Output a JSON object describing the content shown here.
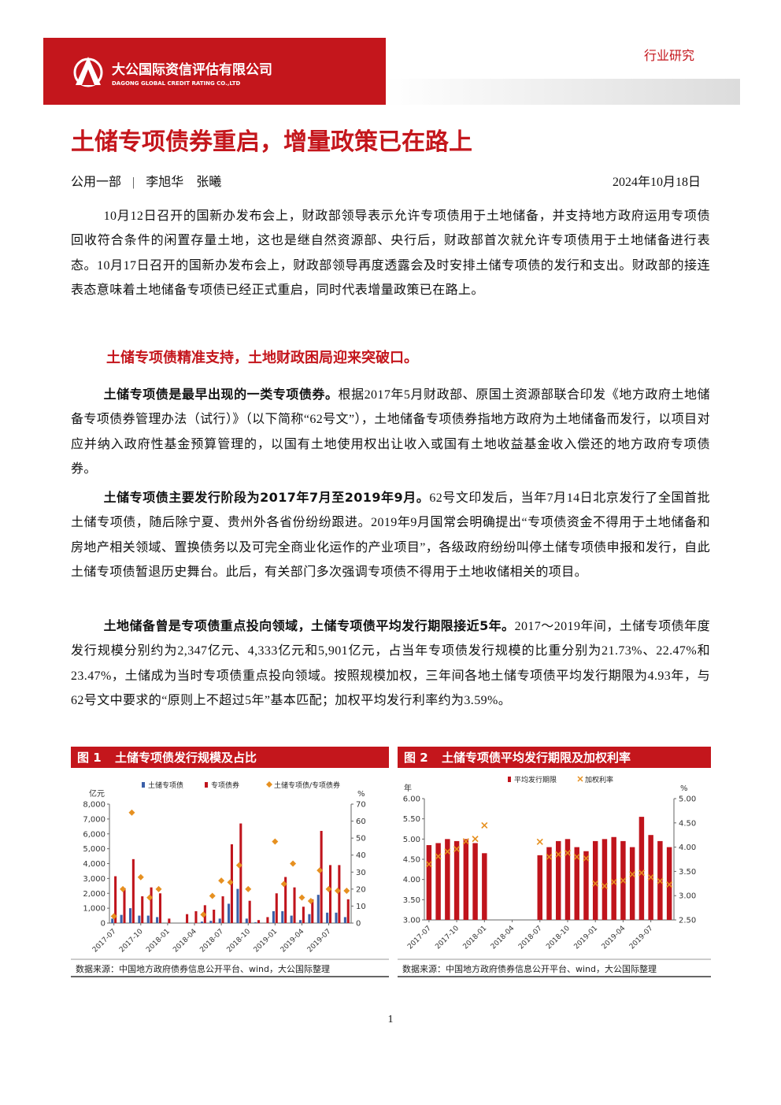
{
  "header": {
    "company_cn": "大公国际资信评估有限公司",
    "company_en": "DAGONG GLOBAL CREDIT RATING CO.,LTD",
    "category": "行业研究"
  },
  "title": "土储专项债券重启，增量政策已在路上",
  "byline": {
    "department": "公用一部",
    "authors": "李旭华　张曦",
    "date": "2024年10月18日"
  },
  "intro": "10月12日召开的国新办发布会上，财政部领导表示允许专项债用于土地储备，并支持地方政府运用专项债回收符合条件的闲置存量土地，这也是继自然资源部、央行后，财政部首次就允许专项债用于土地储备进行表态。10月17日召开的国新办发布会上，财政部领导再度透露会及时安排土储专项债的发行和支出。财政部的接连表态意味着土地储备专项债已经正式重启，同时代表增量政策已在路上。",
  "section_heading": "土储专项债精准支持，土地财政困局迎来突破口。",
  "paragraphs": [
    {
      "lead": "土储专项债是最早出现的一类专项债券。",
      "text": "根据2017年5月财政部、原国土资源部联合印发《地方政府土地储备专项债券管理办法（试行）》（以下简称“62号文”），土地储备专项债券指地方政府为土地储备而发行，以项目对应并纳入政府性基金预算管理的，以国有土地使用权出让收入或国有土地收益基金收入偿还的地方政府专项债券。"
    },
    {
      "lead": "土储专项债主要发行阶段为2017年7月至2019年9月。",
      "text": "62号文印发后，当年7月14日北京发行了全国首批土储专项债，随后除宁夏、贵州外各省份纷纷跟进。2019年9月国常会明确提出“专项债资金不得用于土地储备和房地产相关领域、置换债务以及可完全商业化运作的产业项目”，各级政府纷纷叫停土储专项债申报和发行，自此土储专项债暂退历史舞台。此后，有关部门多次强调专项债不得用于土地收储相关的项目。"
    },
    {
      "lead": "土地储备曾是专项债重点投向领域，土储专项债平均发行期限接近5年。",
      "text": "2017～2019年间，土储专项债年度发行规模分别约为2,347亿元、4,333亿元和5,901亿元，占当年专项债发行规模的比重分别为21.73%、22.47%和23.47%，土储成为当时专项债重点投向领域。按照规模加权，三年间各地土储专项债平均发行期限为4.93年，与62号文中要求的“原则上不超过5年”基本匹配；加权平均发行利率约为3.59%。"
    }
  ],
  "page_number": 1,
  "chart_data": [
    {
      "type": "bar",
      "label": "图 1",
      "title": "土储专项债发行规模及占比",
      "source": "数据来源：中国地方政府债券信息公开平台、wind，大公国际整理",
      "y_label": "亿元",
      "y2_label": "%",
      "categories": [
        "2017-07",
        null,
        null,
        "2017-10",
        null,
        null,
        "2018-01",
        null,
        null,
        "2018-04",
        null,
        null,
        "2018-07",
        null,
        null,
        "2018-10",
        null,
        null,
        "2019-01",
        null,
        null,
        "2019-04",
        null,
        null,
        "2019-07",
        null,
        null
      ],
      "series": [
        {
          "name": "土储专项债",
          "color": "#3a5fa8",
          "type": "bar",
          "values": [
            300,
            550,
            1000,
            500,
            500,
            400,
            0,
            0,
            0,
            0,
            100,
            150,
            300,
            1300,
            2300,
            300,
            50,
            0,
            800,
            800,
            500,
            200,
            600,
            1900,
            700,
            700,
            400
          ]
        },
        {
          "name": "专项债券",
          "color": "#c0141c",
          "type": "bar",
          "values": [
            3150,
            2350,
            4300,
            1800,
            2400,
            2000,
            300,
            0,
            600,
            800,
            1200,
            900,
            1800,
            5300,
            6700,
            1500,
            200,
            400,
            2000,
            3100,
            2400,
            1100,
            1600,
            6200,
            3900,
            3900,
            1600
          ]
        },
        {
          "name": "土储专项债/专项债券",
          "color": "#e69020",
          "type": "scatter",
          "marker": "diamond",
          "axis": "y2",
          "values": [
            4,
            20,
            65,
            27,
            15,
            20,
            null,
            null,
            null,
            null,
            5,
            16,
            25,
            24,
            34,
            20,
            null,
            null,
            48,
            23,
            35,
            15,
            13,
            31,
            20,
            19,
            19
          ]
        }
      ],
      "ylim": [
        0,
        8000
      ],
      "yticks": [
        0,
        {
          "value": 1000,
          "label": "1,000"
        },
        {
          "value": 2000,
          "label": "2,000"
        },
        {
          "value": 3000,
          "label": "3,000"
        },
        {
          "value": 4000,
          "label": "4,000"
        },
        {
          "value": 5000,
          "label": "5,000"
        },
        {
          "value": 6000,
          "label": "6,000"
        },
        {
          "value": 7000,
          "label": "7,000"
        },
        {
          "value": 8000,
          "label": "8,000"
        }
      ],
      "y2lim": [
        0,
        70
      ],
      "y2ticks": [
        0,
        10,
        20,
        30,
        40,
        50,
        60,
        70
      ],
      "grid": false
    },
    {
      "type": "bar",
      "label": "图 2",
      "title": "土储专项债平均发行期限及加权利率",
      "source": "数据来源：中国地方政府债券信息公开平台、wind，大公国际整理",
      "y_label": "年",
      "y2_label": "%",
      "categories": [
        "2017-07",
        null,
        null,
        "2017-10",
        null,
        null,
        "2018-01",
        null,
        null,
        "2018-04",
        null,
        null,
        "2018-07",
        null,
        null,
        "2018-10",
        null,
        null,
        "2019-01",
        null,
        null,
        "2019-04",
        null,
        null,
        "2019-07",
        null,
        null
      ],
      "series": [
        {
          "name": "平均发行期限",
          "color": "#c0141c",
          "type": "bar",
          "values": [
            4.85,
            4.9,
            5.0,
            4.95,
            5.0,
            4.9,
            4.65,
            null,
            null,
            null,
            null,
            null,
            4.6,
            4.8,
            4.95,
            5.0,
            4.8,
            4.7,
            4.95,
            5.0,
            5.05,
            4.95,
            4.8,
            5.55,
            5.1,
            4.95,
            4.8
          ]
        },
        {
          "name": "加权利率",
          "color": "#e69020",
          "type": "scatter",
          "marker": "x",
          "axis": "y2",
          "values": [
            3.65,
            3.81,
            3.91,
            3.96,
            4.12,
            4.17,
            4.45,
            null,
            null,
            null,
            null,
            null,
            4.11,
            3.8,
            3.85,
            3.88,
            3.8,
            3.77,
            3.25,
            3.2,
            3.28,
            3.31,
            3.44,
            3.47,
            3.38,
            3.3,
            3.23
          ]
        }
      ],
      "ylim": [
        3,
        6
      ],
      "yticks": [
        {
          "value": 3,
          "label": "3.00"
        },
        {
          "value": 3.5,
          "label": "3.50"
        },
        {
          "value": 4,
          "label": "4.00"
        },
        {
          "value": 4.5,
          "label": "4.50"
        },
        {
          "value": 5,
          "label": "5.00"
        },
        {
          "value": 5.5,
          "label": "5.50"
        },
        {
          "value": 6,
          "label": "6.00"
        }
      ],
      "y2lim": [
        2.5,
        5
      ],
      "y2ticks": [
        {
          "value": 2.5,
          "label": "2.50"
        },
        {
          "value": 3,
          "label": "3.00"
        },
        {
          "value": 3.5,
          "label": "3.50"
        },
        {
          "value": 4,
          "label": "4.00"
        },
        {
          "value": 4.5,
          "label": "4.50"
        },
        {
          "value": 5,
          "label": "5.00"
        }
      ],
      "grid": false
    }
  ]
}
